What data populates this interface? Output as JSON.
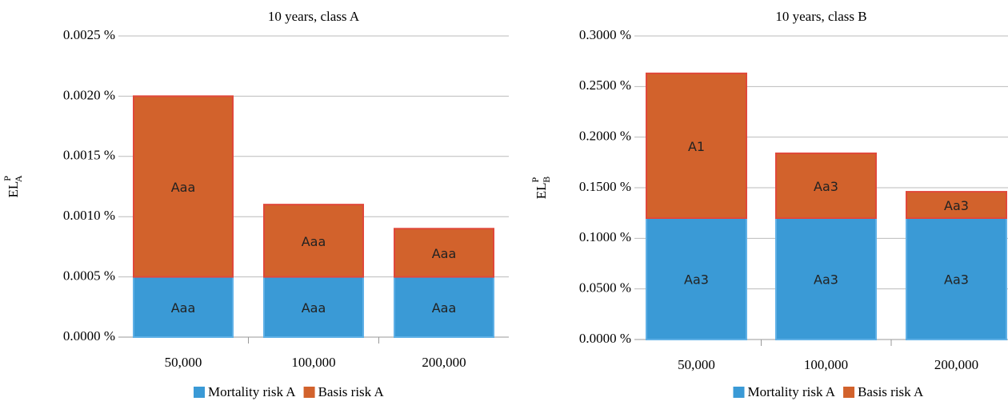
{
  "chart_data": [
    {
      "type": "bar",
      "stacked": true,
      "title": "10 years, class A",
      "y_label": "EL",
      "y_label_sup": "P",
      "y_label_sub": "A",
      "categories": [
        "50,000",
        "100,000",
        "200,000"
      ],
      "series": [
        {
          "name": "Mortality risk A",
          "color": "#3a9ad6",
          "values": [
            0.0005,
            0.0005,
            0.0005
          ],
          "segment_labels": [
            "Aaa",
            "Aaa",
            "Aaa"
          ]
        },
        {
          "name": "Basis risk A",
          "color": "#d2622c",
          "values": [
            0.0015,
            0.0006,
            0.0004
          ],
          "segment_labels": [
            "Aaa",
            "Aaa",
            "Aaa"
          ]
        }
      ],
      "ylim": [
        0,
        0.0025
      ],
      "yticks": [
        {
          "value": 0,
          "label": "0.0000 %"
        },
        {
          "value": 0.0005,
          "label": "0.0005 %"
        },
        {
          "value": 0.001,
          "label": "0.0010 %"
        },
        {
          "value": 0.0015,
          "label": "0.0015 %"
        },
        {
          "value": 0.002,
          "label": "0.0020 %"
        },
        {
          "value": 0.0025,
          "label": "0.0025 %"
        }
      ],
      "grid": true,
      "legend": "bottom"
    },
    {
      "type": "bar",
      "stacked": true,
      "title": "10 years, class B",
      "y_label": "EL",
      "y_label_sup": "P",
      "y_label_sub": "B",
      "categories": [
        "50,000",
        "100,000",
        "200,000"
      ],
      "series": [
        {
          "name": "Mortality risk A",
          "color": "#3a9ad6",
          "values": [
            0.12,
            0.12,
            0.12
          ],
          "segment_labels": [
            "Aa3",
            "Aa3",
            "Aa3"
          ]
        },
        {
          "name": "Basis risk A",
          "color": "#d2622c",
          "values": [
            0.143,
            0.064,
            0.026
          ],
          "segment_labels": [
            "A1",
            "Aa3",
            "Aa3"
          ]
        }
      ],
      "ylim": [
        0,
        0.3
      ],
      "yticks": [
        {
          "value": 0,
          "label": "0.0000 %"
        },
        {
          "value": 0.05,
          "label": "0.0500 %"
        },
        {
          "value": 0.1,
          "label": "0.1000 %"
        },
        {
          "value": 0.15,
          "label": "0.1500 %"
        },
        {
          "value": 0.2,
          "label": "0.2000 %"
        },
        {
          "value": 0.25,
          "label": "0.2500 %"
        },
        {
          "value": 0.3,
          "label": "0.3000 %"
        }
      ],
      "grid": true,
      "legend": "bottom"
    }
  ]
}
